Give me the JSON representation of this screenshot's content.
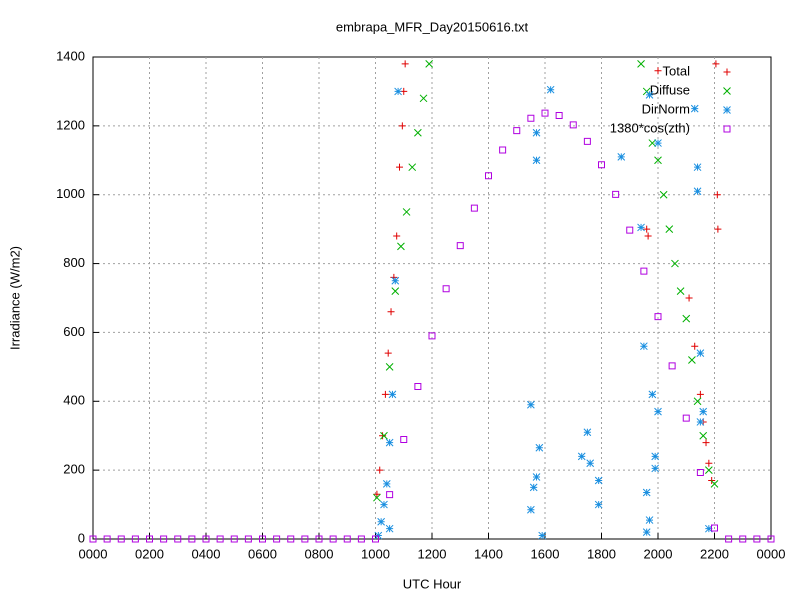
{
  "chart_data": {
    "type": "scatter",
    "title": "embrapa_MFR_Day20150616.txt",
    "xlabel": "UTC Hour",
    "ylabel": "Irradiance (W/m2)",
    "xlim": [
      0,
      24
    ],
    "ylim": [
      0,
      1400
    ],
    "xticks": [
      {
        "value": 0,
        "label": "0000"
      },
      {
        "value": 2,
        "label": "0200"
      },
      {
        "value": 4,
        "label": "0400"
      },
      {
        "value": 6,
        "label": "0600"
      },
      {
        "value": 8,
        "label": "0800"
      },
      {
        "value": 10,
        "label": "1000"
      },
      {
        "value": 12,
        "label": "1200"
      },
      {
        "value": 14,
        "label": "1400"
      },
      {
        "value": 16,
        "label": "1600"
      },
      {
        "value": 18,
        "label": "1800"
      },
      {
        "value": 20,
        "label": "2000"
      },
      {
        "value": 22,
        "label": "2200"
      },
      {
        "value": 24,
        "label": "0000"
      }
    ],
    "yticks": [
      0,
      200,
      400,
      600,
      800,
      1000,
      1200,
      1400
    ],
    "grid": true,
    "legend": "upper right",
    "series": [
      {
        "name": "Total",
        "color": "#e00000",
        "marker": "plus",
        "x": [
          10.05,
          10.15,
          10.25,
          10.35,
          10.45,
          10.55,
          10.65,
          10.75,
          10.85,
          10.95,
          11.0,
          11.05,
          19.6,
          19.65,
          20.0,
          21.1,
          21.3,
          21.5,
          21.6,
          21.7,
          21.8,
          21.9,
          22.05,
          22.1,
          22.12
        ],
        "values": [
          130,
          200,
          300,
          420,
          540,
          660,
          760,
          880,
          1080,
          1200,
          1300,
          1380,
          900,
          880,
          1360,
          700,
          560,
          420,
          340,
          280,
          220,
          170,
          1380,
          1000,
          900
        ]
      },
      {
        "name": "Diffuse",
        "color": "#00b000",
        "marker": "cross",
        "x": [
          10.05,
          10.3,
          10.5,
          10.7,
          10.9,
          11.1,
          11.3,
          11.5,
          11.7,
          11.9,
          19.4,
          19.6,
          19.8,
          20.0,
          20.2,
          20.4,
          20.6,
          20.8,
          21.0,
          21.2,
          21.4,
          21.6,
          21.8,
          22.0
        ],
        "values": [
          120,
          300,
          500,
          720,
          850,
          950,
          1080,
          1180,
          1280,
          1380,
          1380,
          1300,
          1150,
          1100,
          1000,
          900,
          800,
          720,
          640,
          520,
          400,
          300,
          200,
          160
        ]
      },
      {
        "name": "DirNorm",
        "color": "#1a8fe0",
        "marker": "star",
        "x": [
          10.1,
          10.2,
          10.3,
          10.4,
          10.5,
          10.5,
          10.6,
          10.7,
          10.8,
          15.5,
          15.5,
          15.6,
          15.7,
          15.7,
          15.7,
          15.8,
          15.9,
          16.2,
          17.3,
          17.5,
          17.6,
          17.9,
          17.9,
          18.7,
          19.4,
          19.5,
          19.6,
          19.6,
          19.7,
          19.7,
          19.8,
          19.9,
          19.9,
          20.0,
          20.0,
          21.3,
          21.4,
          21.4,
          21.5,
          21.5,
          21.6,
          21.8
        ],
        "values": [
          10,
          50,
          100,
          160,
          280,
          30,
          420,
          750,
          1300,
          390,
          85,
          150,
          180,
          1180,
          1100,
          265,
          10,
          1305,
          240,
          310,
          220,
          170,
          100,
          1110,
          905,
          560,
          20,
          135,
          55,
          1290,
          420,
          240,
          205,
          370,
          1150,
          1250,
          1010,
          1080,
          540,
          340,
          370,
          30
        ]
      },
      {
        "name": "1380*cos(zth)",
        "color": "#b000e0",
        "marker": "square",
        "x": [
          0,
          0.5,
          1,
          1.5,
          2,
          2.5,
          3,
          3.5,
          4,
          4.5,
          5,
          5.5,
          6,
          6.5,
          7,
          7.5,
          8,
          8.5,
          9,
          9.5,
          10,
          10.5,
          11,
          11.5,
          12,
          12.5,
          13,
          13.5,
          14,
          14.5,
          15,
          15.5,
          16,
          16.5,
          17,
          17.5,
          18,
          18.5,
          19,
          19.5,
          20,
          20.5,
          21,
          21.5,
          22,
          22.5,
          23,
          23.5,
          24
        ],
        "values": [
          0,
          0,
          0,
          0,
          0,
          0,
          0,
          0,
          0,
          0,
          0,
          0,
          0,
          0,
          0,
          0,
          0,
          0,
          0,
          0,
          0,
          129,
          289,
          443,
          590,
          727,
          852,
          961,
          1055,
          1130,
          1186,
          1222,
          1237,
          1230,
          1203,
          1155,
          1087,
          1001,
          897,
          778,
          646,
          503,
          351,
          193,
          32,
          0,
          0,
          0,
          0
        ]
      }
    ]
  }
}
